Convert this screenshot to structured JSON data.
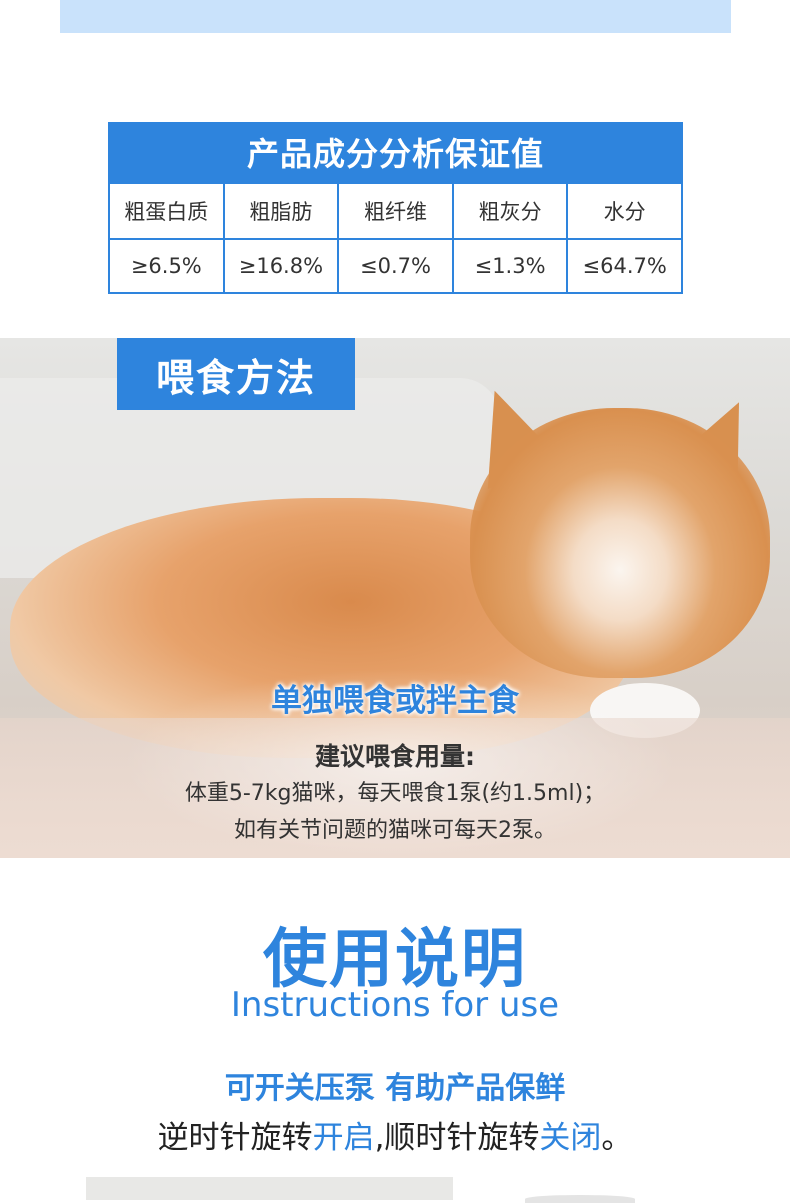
{
  "analysis_table": {
    "title": "产品成分分析保证值",
    "headers": [
      "粗蛋白质",
      "粗脂肪",
      "粗纤维",
      "粗灰分",
      "水分"
    ],
    "values": [
      "≥6.5%",
      "≥16.8%",
      "≤0.7%",
      "≤1.3%",
      "≤64.7%"
    ]
  },
  "feeding": {
    "tag": "喂食方法",
    "headline": "单独喂食或拌主食",
    "dose_heading": "建议喂食用量:",
    "dose_line1": "体重5-7kg猫咪，每天喂食1泵(约1.5ml)；",
    "dose_line2": "如有关节问题的猫咪可每天2泵。"
  },
  "usage": {
    "title": "使用说明",
    "subtitle": "Instructions for use",
    "pump_heading": "可开关压泵 有助产品保鲜",
    "line_part1": "逆时针旋转",
    "line_open": "开启",
    "line_part2": ",顺时针旋转",
    "line_close": "关闭",
    "line_end": "。"
  },
  "colors": {
    "accent": "#2e84dd",
    "light_band": "#c9e2fb"
  }
}
